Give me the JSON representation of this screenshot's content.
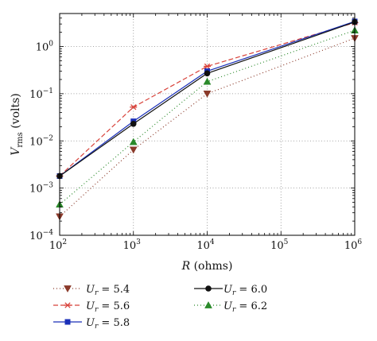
{
  "chart_data": {
    "type": "line",
    "xlabel": {
      "var": "R",
      "unit": "(ohms)"
    },
    "ylabel": {
      "var": "V",
      "sub": "rms",
      "unit": "(volts)"
    },
    "xscale": "log",
    "yscale": "log",
    "xlim": [
      100,
      1000000
    ],
    "ylim": [
      0.0001,
      5
    ],
    "grid": true,
    "legend_position": "bottom",
    "x": [
      100,
      1000,
      10000,
      1000000
    ],
    "x_ticks": [
      {
        "base": "10",
        "exp": "2"
      },
      {
        "base": "10",
        "exp": "3"
      },
      {
        "base": "10",
        "exp": "4"
      },
      {
        "base": "10",
        "exp": "5"
      },
      {
        "base": "10",
        "exp": "6"
      }
    ],
    "y_ticks": [
      {
        "base": "10",
        "exp": "−4"
      },
      {
        "base": "10",
        "exp": "−3"
      },
      {
        "base": "10",
        "exp": "−2"
      },
      {
        "base": "10",
        "exp": "−1"
      },
      {
        "base": "10",
        "exp": "0"
      }
    ],
    "series": [
      {
        "name": "U",
        "sub": "r",
        "value": "= 5.4",
        "color": "#8b3a2a",
        "dash": "1,3",
        "marker": "triangle-down",
        "values": [
          0.00025,
          0.0065,
          0.1,
          1.5
        ]
      },
      {
        "name": "U",
        "sub": "r",
        "value": "= 5.6",
        "color": "#d8423a",
        "dash": "6,3",
        "marker": "x-star",
        "values": [
          0.0018,
          0.052,
          0.38,
          3.2
        ]
      },
      {
        "name": "U",
        "sub": "r",
        "value": "= 5.8",
        "color": "#1a2fb8",
        "dash": "",
        "marker": "square",
        "values": [
          0.0018,
          0.026,
          0.3,
          3.4
        ]
      },
      {
        "name": "U",
        "sub": "r",
        "value": "= 6.0",
        "color": "#111111",
        "dash": "",
        "marker": "circle",
        "values": [
          0.0018,
          0.023,
          0.27,
          3.3
        ]
      },
      {
        "name": "U",
        "sub": "r",
        "value": "= 6.2",
        "color": "#2a8a2a",
        "dash": "1,3",
        "marker": "triangle-up",
        "values": [
          0.00045,
          0.0095,
          0.18,
          2.2
        ]
      }
    ]
  }
}
